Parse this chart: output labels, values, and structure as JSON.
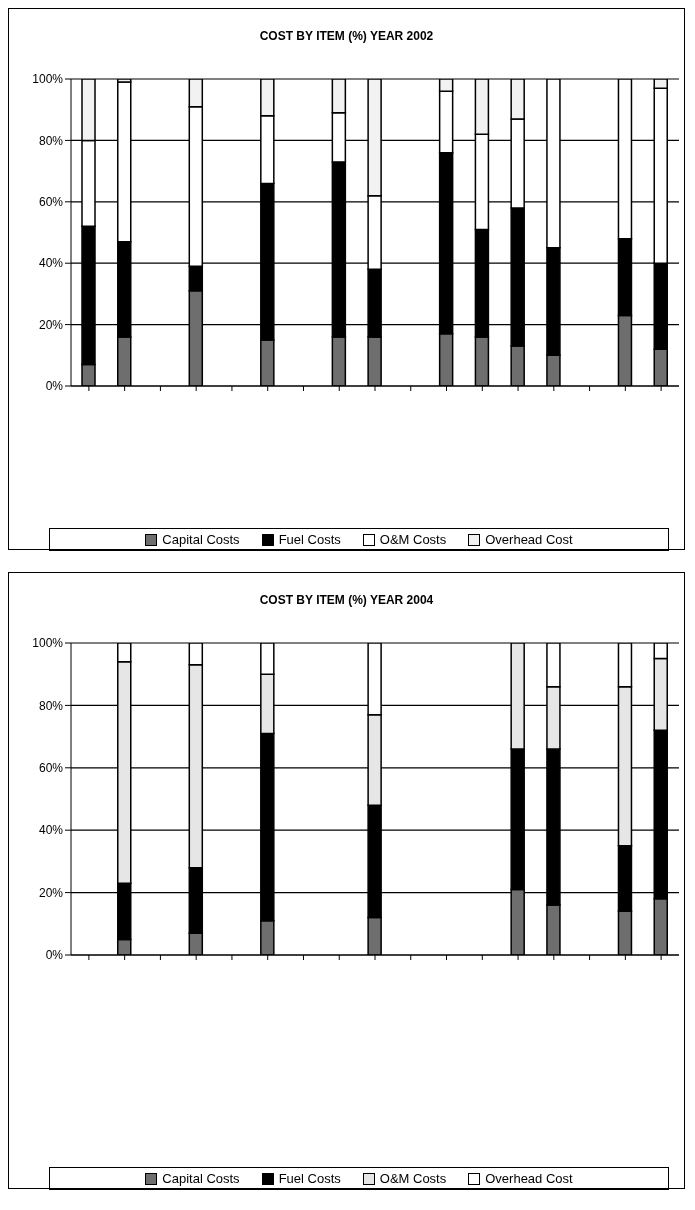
{
  "chart_data": [
    {
      "type": "bar",
      "title": "COST BY ITEM (%) YEAR 2002",
      "stacked": true,
      "grid": "y",
      "legend": "bottom",
      "categories": [
        null,
        null,
        null,
        null,
        null,
        null,
        null,
        null,
        null,
        null,
        null,
        null,
        null,
        null,
        null,
        null,
        null
      ],
      "ylim": [
        0,
        100
      ],
      "yticks": [
        {
          "value": 0,
          "label": "0%"
        },
        {
          "value": 20,
          "label": "20%"
        },
        {
          "value": 40,
          "label": "40%"
        },
        {
          "value": 60,
          "label": "60%"
        },
        {
          "value": 80,
          "label": "80%"
        },
        {
          "value": 100,
          "label": "100%"
        }
      ],
      "series": [
        {
          "name": "Capital Costs",
          "color": "#6e6e6e",
          "values": [
            7,
            16,
            null,
            31,
            null,
            15,
            null,
            16,
            16,
            null,
            17,
            16,
            13,
            10,
            null,
            23,
            12
          ]
        },
        {
          "name": "Fuel Costs",
          "color": "#000000",
          "values": [
            45,
            31,
            null,
            8,
            null,
            51,
            null,
            57,
            22,
            null,
            59,
            35,
            45,
            35,
            null,
            25,
            28
          ]
        },
        {
          "name": "O&M Costs",
          "color": "#ffffff",
          "values": [
            28,
            52,
            null,
            52,
            null,
            22,
            null,
            16,
            24,
            null,
            20,
            31,
            29,
            55,
            null,
            52,
            57
          ]
        },
        {
          "name": "Overhead Cost",
          "color": "#f2f2f2",
          "values": [
            20,
            1,
            null,
            9,
            null,
            12,
            null,
            11,
            38,
            null,
            4,
            18,
            13,
            0,
            null,
            0,
            3
          ]
        }
      ]
    },
    {
      "type": "bar",
      "title": "COST BY ITEM (%) YEAR 2004",
      "stacked": true,
      "grid": "y",
      "legend": "bottom",
      "categories": [
        null,
        null,
        null,
        null,
        null,
        null,
        null,
        null,
        null,
        null,
        null,
        null,
        null,
        null,
        null,
        null,
        null
      ],
      "ylim": [
        0,
        100
      ],
      "yticks": [
        {
          "value": 0,
          "label": "0%"
        },
        {
          "value": 20,
          "label": "20%"
        },
        {
          "value": 40,
          "label": "40%"
        },
        {
          "value": 60,
          "label": "60%"
        },
        {
          "value": 80,
          "label": "80%"
        },
        {
          "value": 100,
          "label": "100%"
        }
      ],
      "series": [
        {
          "name": "Capital Costs",
          "color": "#6e6e6e",
          "values": [
            null,
            5,
            null,
            7,
            null,
            11,
            null,
            null,
            12,
            null,
            null,
            null,
            21,
            16,
            null,
            14,
            18
          ]
        },
        {
          "name": "Fuel Costs",
          "color": "#000000",
          "values": [
            null,
            18,
            null,
            21,
            null,
            60,
            null,
            null,
            36,
            null,
            null,
            null,
            45,
            50,
            null,
            21,
            54
          ]
        },
        {
          "name": "O&M Costs",
          "color": "#e6e6e6",
          "values": [
            null,
            71,
            null,
            65,
            null,
            19,
            null,
            null,
            29,
            null,
            null,
            null,
            34,
            20,
            null,
            51,
            23
          ]
        },
        {
          "name": "Overhead Cost",
          "color": "#ffffff",
          "values": [
            null,
            6,
            null,
            7,
            null,
            10,
            null,
            null,
            23,
            null,
            null,
            null,
            0,
            14,
            null,
            14,
            5
          ]
        }
      ]
    }
  ]
}
